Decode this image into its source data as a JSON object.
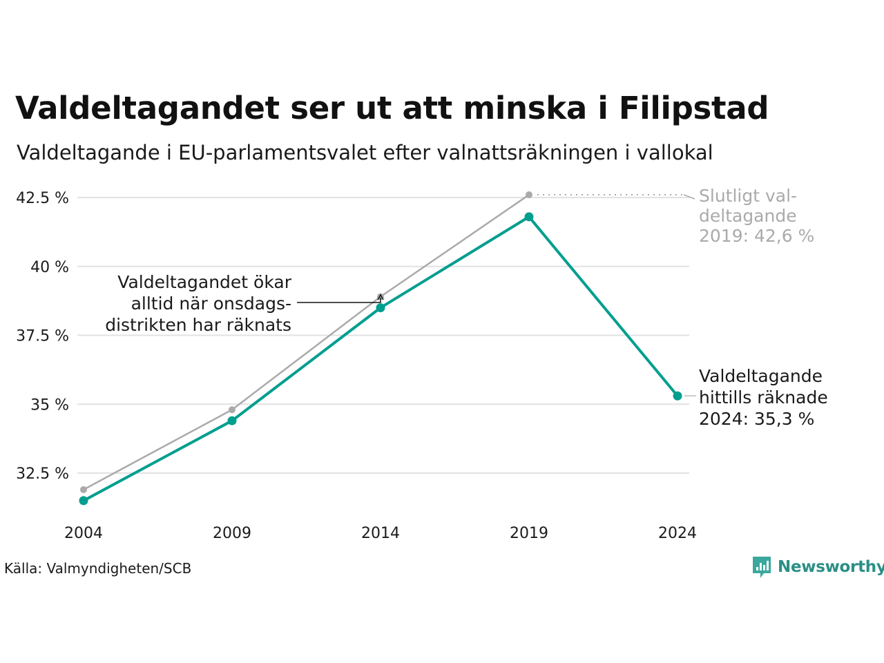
{
  "title": "Valdeltagandet ser ut att minska i Filipstad",
  "subtitle": "Valdeltagande i EU-parlamentsvalet efter valnattsräkningen i vallokal",
  "source": "Källa: Valmyndigheten/SCB",
  "brand": "Newsworthy",
  "colors": {
    "current": "#009e8f",
    "final": "#aaaaaa",
    "grid": "#e2e2e2",
    "text": "#1a1a1a",
    "brand": "#2a8f86"
  },
  "chart_data": {
    "type": "line",
    "x": [
      "2004",
      "2009",
      "2014",
      "2019",
      "2024"
    ],
    "ylim": [
      31.0,
      43.0
    ],
    "yticks": [
      32.5,
      35,
      37.5,
      40,
      42.5
    ],
    "ytick_labels": [
      "32.5 %",
      "35 %",
      "37.5 %",
      "40 %",
      "42.5 %"
    ],
    "xlabel": "",
    "ylabel": "",
    "grid": true,
    "series": [
      {
        "key": "final",
        "values": [
          31.9,
          34.8,
          38.9,
          42.6,
          null
        ]
      },
      {
        "key": "current",
        "values": [
          31.5,
          34.4,
          38.5,
          41.8,
          35.3
        ]
      }
    ],
    "annotations": {
      "final_label": [
        "Slutligt val-",
        "deltagande",
        "2019: 42,6 %"
      ],
      "current_label": [
        "Valdeltagande",
        "hittills räknade",
        "2024: 35,3 %"
      ],
      "increase_note": [
        "Valdeltagandet ökar",
        "alltid när onsdags-",
        "distrikten har räknats"
      ]
    }
  }
}
